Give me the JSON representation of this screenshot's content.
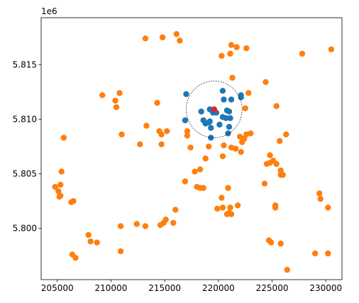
{
  "chart_data": {
    "type": "scatter",
    "title": "",
    "xlabel": "",
    "ylabel": "",
    "y_offset_label": "1e6",
    "xlim": [
      203500,
      231500
    ],
    "ylim": [
      5795300,
      5819300
    ],
    "x_ticks": [
      205000,
      210000,
      215000,
      220000,
      225000,
      230000
    ],
    "x_tick_labels": [
      "205000",
      "210000",
      "215000",
      "220000",
      "225000",
      "230000"
    ],
    "y_ticks": [
      5800000,
      5805000,
      5810000,
      5815000
    ],
    "y_tick_labels": [
      "5.800",
      "5.805",
      "5.810",
      "5.815"
    ],
    "grid": false,
    "legend": "none",
    "colors": {
      "outside": "#ff7f0e",
      "inside": "#1f77b4",
      "center": "#d62728",
      "circle": "#000000"
    },
    "circle": {
      "center_x": 219600,
      "center_y": 5810900,
      "radius": 2600,
      "style": "dashed"
    },
    "series": [
      {
        "color": "#ff7f0e",
        "points": [
          [
            216100,
            5817800
          ],
          [
            213200,
            5817400
          ],
          [
            214800,
            5817500
          ],
          [
            216400,
            5817200
          ],
          [
            221200,
            5816800
          ],
          [
            221700,
            5816600
          ],
          [
            222600,
            5816500
          ],
          [
            220300,
            5815800
          ],
          [
            221100,
            5816000
          ],
          [
            227800,
            5816000
          ],
          [
            230500,
            5816400
          ],
          [
            221300,
            5813800
          ],
          [
            224400,
            5813400
          ],
          [
            222800,
            5812400
          ],
          [
            209200,
            5812200
          ],
          [
            210800,
            5812400
          ],
          [
            210400,
            5811700
          ],
          [
            210500,
            5811100
          ],
          [
            214300,
            5811500
          ],
          [
            225400,
            5811200
          ],
          [
            222500,
            5811000
          ],
          [
            213300,
            5809400
          ],
          [
            217100,
            5808900
          ],
          [
            217100,
            5808500
          ],
          [
            214500,
            5808900
          ],
          [
            214700,
            5808600
          ],
          [
            215200,
            5808900
          ],
          [
            211000,
            5808600
          ],
          [
            205600,
            5808300
          ],
          [
            212700,
            5807700
          ],
          [
            214700,
            5807700
          ],
          [
            217400,
            5807400
          ],
          [
            219100,
            5807500
          ],
          [
            220500,
            5807600
          ],
          [
            221600,
            5807300
          ],
          [
            222000,
            5808400
          ],
          [
            222600,
            5808600
          ],
          [
            222200,
            5807900
          ],
          [
            223000,
            5808700
          ],
          [
            222400,
            5808200
          ],
          [
            226300,
            5808600
          ],
          [
            225700,
            5808000
          ],
          [
            222100,
            5807000
          ],
          [
            221200,
            5807400
          ],
          [
            220400,
            5806600
          ],
          [
            218800,
            5806400
          ],
          [
            224800,
            5806700
          ],
          [
            225100,
            5806200
          ],
          [
            224800,
            5806000
          ],
          [
            224500,
            5805900
          ],
          [
            225400,
            5805900
          ],
          [
            225800,
            5805300
          ],
          [
            225800,
            5804900
          ],
          [
            226000,
            5804900
          ],
          [
            205400,
            5805200
          ],
          [
            217800,
            5805200
          ],
          [
            218300,
            5805400
          ],
          [
            216900,
            5804300
          ],
          [
            218000,
            5803800
          ],
          [
            218300,
            5803700
          ],
          [
            218600,
            5803700
          ],
          [
            220900,
            5803700
          ],
          [
            220300,
            5802800
          ],
          [
            224300,
            5804100
          ],
          [
            221800,
            5802100
          ],
          [
            219900,
            5801800
          ],
          [
            220400,
            5801900
          ],
          [
            221100,
            5801900
          ],
          [
            221000,
            5801400
          ],
          [
            221200,
            5801300
          ],
          [
            220800,
            5801300
          ],
          [
            229400,
            5803200
          ],
          [
            229500,
            5802700
          ],
          [
            230200,
            5801900
          ],
          [
            225300,
            5802100
          ],
          [
            225300,
            5801900
          ],
          [
            204800,
            5803800
          ],
          [
            205100,
            5803400
          ],
          [
            205300,
            5803000
          ],
          [
            205200,
            5802900
          ],
          [
            205300,
            5804000
          ],
          [
            206300,
            5802400
          ],
          [
            206500,
            5802500
          ],
          [
            216000,
            5801700
          ],
          [
            215100,
            5800800
          ],
          [
            214900,
            5800500
          ],
          [
            214600,
            5800300
          ],
          [
            215800,
            5800500
          ],
          [
            213200,
            5800200
          ],
          [
            212400,
            5800400
          ],
          [
            210900,
            5800200
          ],
          [
            207900,
            5799400
          ],
          [
            208100,
            5798800
          ],
          [
            208700,
            5798700
          ],
          [
            210900,
            5797900
          ],
          [
            206400,
            5797600
          ],
          [
            206700,
            5797300
          ],
          [
            224700,
            5798900
          ],
          [
            224900,
            5798700
          ],
          [
            225800,
            5798600
          ],
          [
            229000,
            5797700
          ],
          [
            230200,
            5797700
          ],
          [
            226400,
            5796200
          ]
        ]
      },
      {
        "color": "#1f77b4",
        "points": [
          [
            217000,
            5812300
          ],
          [
            216900,
            5809900
          ],
          [
            218400,
            5810700
          ],
          [
            218600,
            5809900
          ],
          [
            218800,
            5809600
          ],
          [
            219100,
            5809700
          ],
          [
            219300,
            5809200
          ],
          [
            219300,
            5808300
          ],
          [
            219200,
            5809800
          ],
          [
            220100,
            5809500
          ],
          [
            219200,
            5810900
          ],
          [
            219500,
            5810600
          ],
          [
            219800,
            5810600
          ],
          [
            220400,
            5812600
          ],
          [
            220500,
            5811800
          ],
          [
            221200,
            5811800
          ],
          [
            220800,
            5810800
          ],
          [
            221000,
            5810700
          ],
          [
            220400,
            5810200
          ],
          [
            220700,
            5810100
          ],
          [
            221100,
            5810100
          ],
          [
            221000,
            5809300
          ],
          [
            220900,
            5808700
          ],
          [
            222100,
            5812000
          ],
          [
            222100,
            5812200
          ]
        ]
      },
      {
        "color": "#d62728",
        "points": [
          [
            219600,
            5810900
          ]
        ]
      }
    ]
  }
}
